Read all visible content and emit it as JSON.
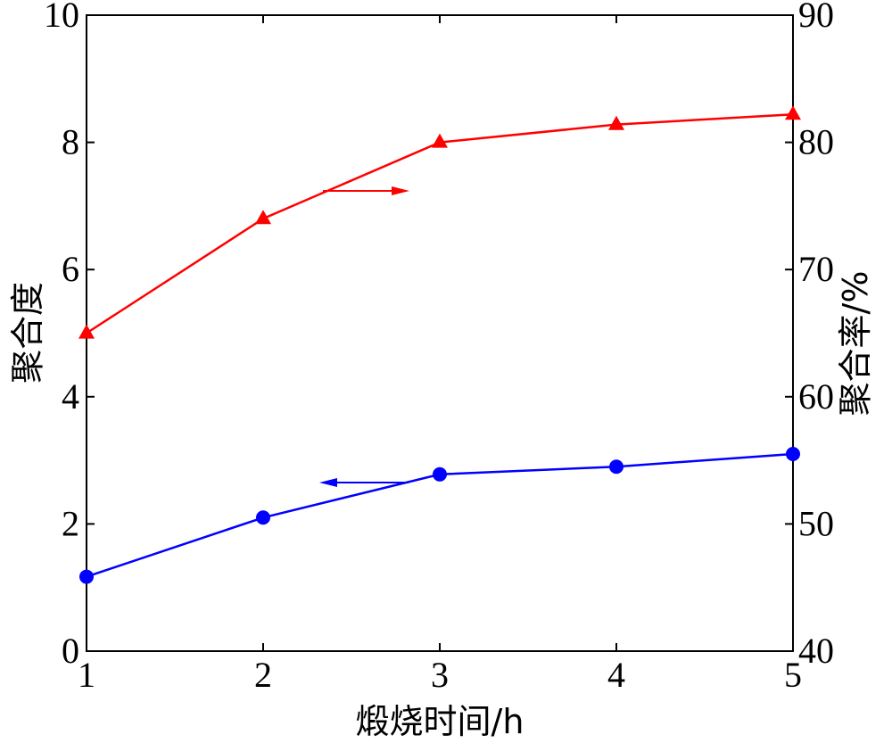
{
  "chart_data": {
    "type": "line",
    "xlabel": "煅烧时间/h",
    "ylabel_left": "聚合度",
    "ylabel_right": "聚合率/%",
    "x": [
      1,
      2,
      3,
      4,
      5
    ],
    "xlim": [
      1,
      5
    ],
    "x_ticks": [
      "1",
      "2",
      "3",
      "4",
      "5"
    ],
    "ylim_left": [
      0,
      10
    ],
    "y_ticks_left": [
      "0",
      "2",
      "4",
      "6",
      "8",
      "10"
    ],
    "ylim_right": [
      40,
      90
    ],
    "y_ticks_right": [
      "40",
      "50",
      "60",
      "70",
      "80",
      "90"
    ],
    "grid": false,
    "series": [
      {
        "axis": "left",
        "color": "#0000ff",
        "marker": "circle",
        "values": [
          1.17,
          2.1,
          2.78,
          2.9,
          3.1
        ]
      },
      {
        "axis": "right",
        "color": "#ff0000",
        "marker": "triangle",
        "values": [
          65.0,
          74.0,
          80.0,
          81.4,
          82.2
        ]
      }
    ],
    "annotations": [
      {
        "type": "arrow",
        "direction": "left",
        "color": "#0000ff",
        "points_to": "left-axis"
      },
      {
        "type": "arrow",
        "direction": "right",
        "color": "#ff0000",
        "points_to": "right-axis"
      }
    ]
  }
}
